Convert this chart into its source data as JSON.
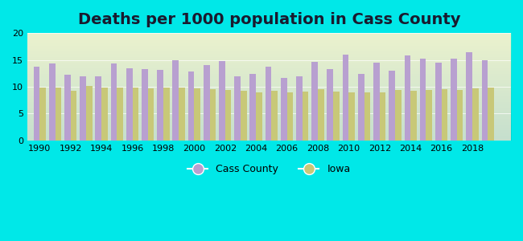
{
  "title": "Deaths per 1000 population in Cass County",
  "years": [
    1990,
    1991,
    1992,
    1993,
    1994,
    1995,
    1996,
    1997,
    1998,
    1999,
    2000,
    2001,
    2002,
    2003,
    2004,
    2005,
    2006,
    2007,
    2008,
    2009,
    2010,
    2011,
    2012,
    2013,
    2014,
    2015,
    2016,
    2017,
    2018,
    2019
  ],
  "cass_county": [
    13.7,
    14.3,
    12.2,
    12.0,
    11.9,
    14.3,
    13.4,
    13.3,
    13.1,
    15.0,
    12.8,
    14.0,
    14.8,
    12.0,
    12.4,
    13.7,
    11.7,
    12.0,
    14.6,
    13.3,
    16.0,
    12.4,
    14.5,
    13.0,
    15.8,
    15.3,
    14.5,
    15.2,
    16.5,
    15.0
  ],
  "iowa": [
    9.8,
    9.9,
    9.3,
    10.1,
    9.9,
    9.9,
    9.8,
    9.7,
    9.8,
    9.8,
    9.7,
    9.5,
    9.4,
    9.3,
    9.0,
    9.3,
    9.0,
    9.1,
    9.5,
    9.1,
    9.0,
    9.0,
    9.0,
    9.4,
    9.3,
    9.4,
    9.6,
    9.4,
    9.7,
    9.8
  ],
  "cass_color": "#b8a0d0",
  "iowa_color": "#c8c878",
  "background_color": "#00e8e8",
  "plot_bg_bottom": "#e8f0e0",
  "ylim": [
    0,
    20
  ],
  "yticks": [
    0,
    5,
    10,
    15,
    20
  ],
  "bar_width": 0.4,
  "title_fontsize": 14,
  "legend_labels": [
    "Cass County",
    "Iowa"
  ]
}
